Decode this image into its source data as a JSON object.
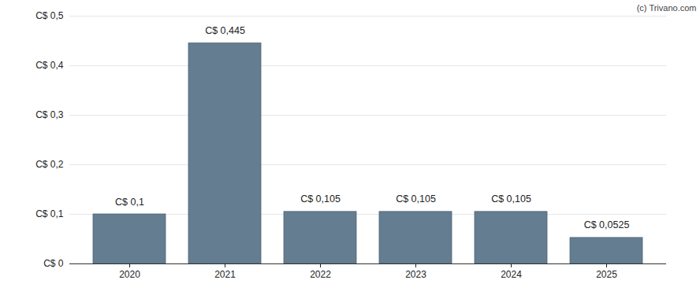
{
  "chart_data": {
    "type": "bar",
    "annotations": [
      "(c) Trivano.com"
    ],
    "categories": [
      "2020",
      "2021",
      "2022",
      "2023",
      "2024",
      "2025"
    ],
    "values": [
      0.1,
      0.445,
      0.105,
      0.105,
      0.105,
      0.0525
    ],
    "value_labels": [
      "C$ 0,1",
      "C$ 0,445",
      "C$ 0,105",
      "C$ 0,105",
      "C$ 0,105",
      "C$ 0,0525"
    ],
    "data_labels": true,
    "color": "#647d91",
    "ylim": [
      0,
      0.5
    ],
    "yticks": [
      {
        "value": 0,
        "label": "C$ 0"
      },
      {
        "value": 0.1,
        "label": "C$ 0,1"
      },
      {
        "value": 0.2,
        "label": "C$ 0,2"
      },
      {
        "value": 0.3,
        "label": "C$ 0,3"
      },
      {
        "value": 0.4,
        "label": "C$ 0,4"
      },
      {
        "value": 0.5,
        "label": "C$ 0,5"
      }
    ],
    "grid": true
  }
}
